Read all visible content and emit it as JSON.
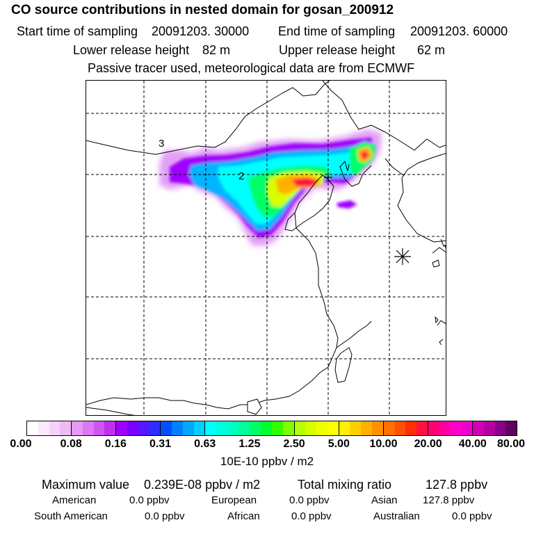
{
  "header": {
    "title": "CO  source contributions in nested domain for gosan_200912",
    "start_label": "Start time of sampling",
    "start_value": "20091203. 30000",
    "end_label": "End time of sampling",
    "end_value": "20091203. 60000",
    "lower_label": "Lower release height",
    "lower_value": "82 m",
    "upper_label": "Upper release height",
    "upper_value": "62 m",
    "tracer_note": "Passive tracer used, meteorological data are from ECMWF"
  },
  "map": {
    "contour_labels": [
      "3",
      "2"
    ],
    "receptor_marker": "asterisk-icon"
  },
  "colorbar": {
    "ticks": [
      "0.00",
      "0.08",
      "0.16",
      "0.31",
      "0.63",
      "1.25",
      "2.50",
      "5.00",
      "10.00",
      "20.00",
      "40.00",
      "80.00"
    ],
    "unit": "10E-10 ppbv / m2",
    "segments": [
      [
        "#ffffff",
        "#fbe8fd",
        "#f6d2fb",
        "#efbaf8"
      ],
      [
        "#e69af6",
        "#dc78f3",
        "#cf55f0",
        "#c030ec"
      ],
      [
        "#a000ff",
        "#7a00ff",
        "#5418ff",
        "#2e2eff"
      ],
      [
        "#0050ff",
        "#0080ff",
        "#00a8ff",
        "#00d0ff"
      ],
      [
        "#00ffff",
        "#00ffe0",
        "#00ffc0",
        "#00ff9a"
      ],
      [
        "#00ff66",
        "#00ff30",
        "#30ff00",
        "#80ff00"
      ],
      [
        "#b4ff00",
        "#d8ff00",
        "#f0ff00",
        "#ffff00"
      ],
      [
        "#fff000",
        "#ffd000",
        "#ffb000",
        "#ff9000"
      ],
      [
        "#ff7000",
        "#ff5000",
        "#ff2e00",
        "#ff1040"
      ],
      [
        "#ff0070",
        "#ff00a0",
        "#ff00c8",
        "#f000d0"
      ],
      [
        "#d000b8",
        "#b000a0",
        "#8a0088",
        "#600060"
      ]
    ]
  },
  "stats": {
    "max_label": "Maximum value",
    "max_value": "0.239E-08 ppbv / m2",
    "total_label": "Total mixing ratio",
    "total_value": "127.8 ppbv",
    "regions": [
      {
        "name": "American",
        "value": "0.0 ppbv"
      },
      {
        "name": "European",
        "value": "0.0 ppbv"
      },
      {
        "name": "Asian",
        "value": "127.8 ppbv"
      },
      {
        "name": "South American",
        "value": "0.0 ppbv"
      },
      {
        "name": "African",
        "value": "0.0 ppbv"
      },
      {
        "name": "Australian",
        "value": "0.0 ppbv"
      }
    ]
  }
}
